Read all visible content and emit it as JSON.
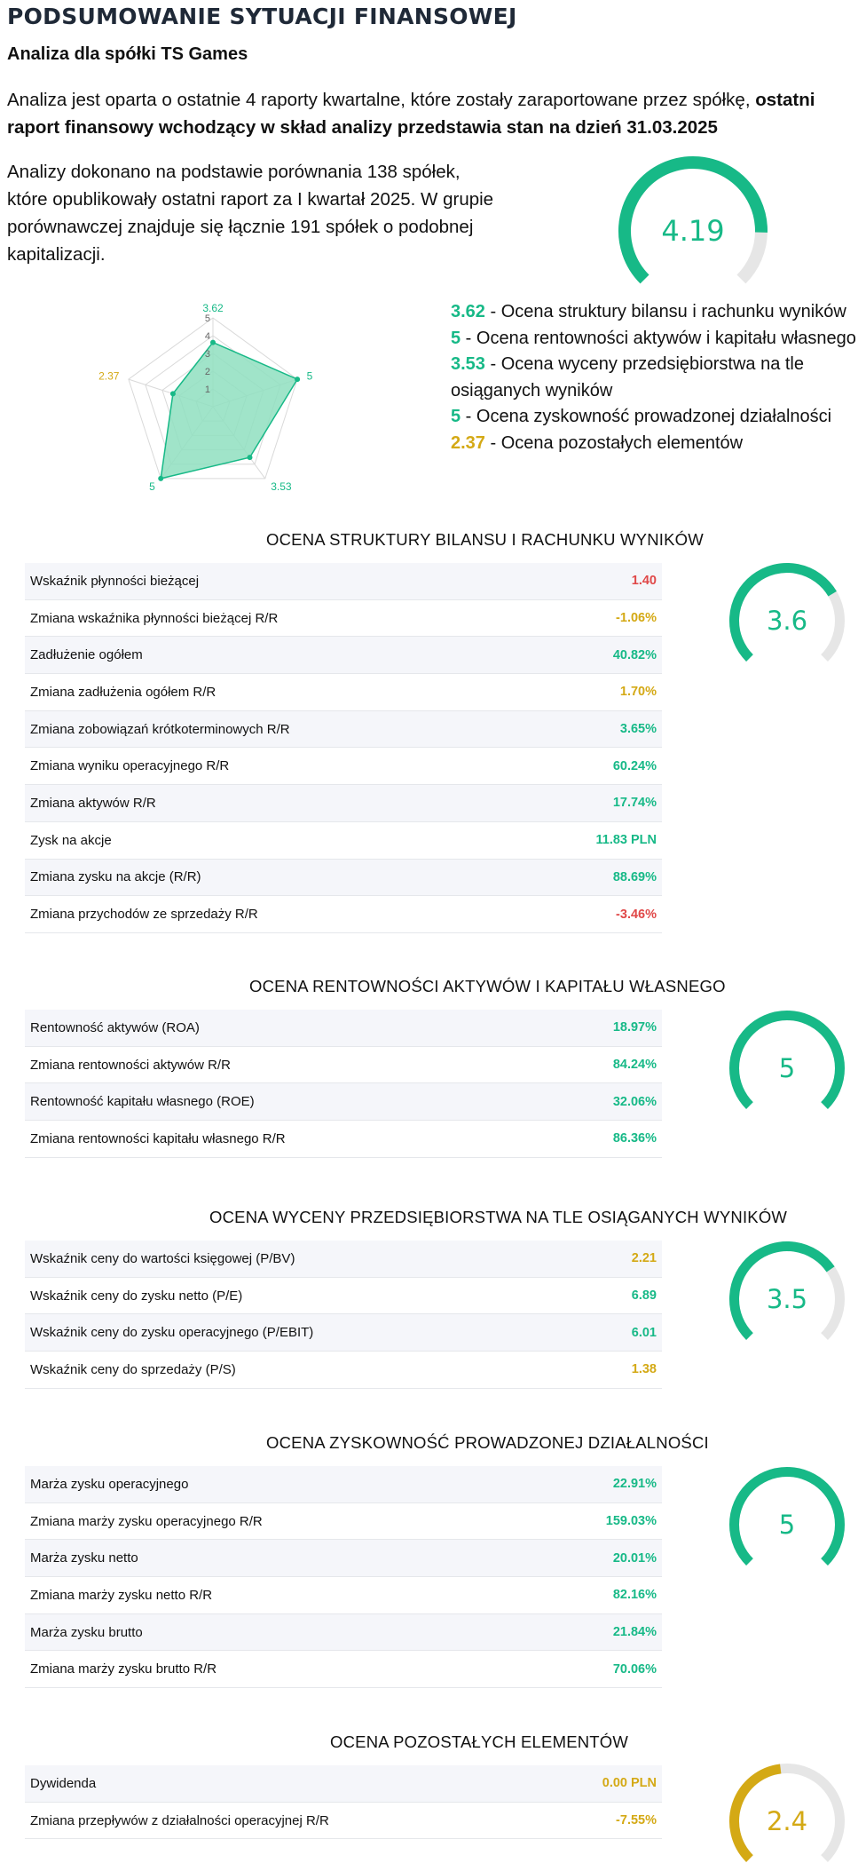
{
  "header": {
    "title": "PODSUMOWANIE SYTUACJI FINANSOWEJ",
    "subtitle": "Analiza dla spółki TS Games"
  },
  "intro": {
    "text": "Analiza jest oparta o ostatnie 4 raporty kwartalne, które zostały zaraportowane przez spółkę, ",
    "bold": "ostatni raport finansowy wchodzący w skład analizy przedstawia stan na dzień 31.03.2025"
  },
  "comparison": "Analizy dokonano na podstawie porównania 138 spółek, które opublikowały ostatni raport za I kwartał 2025. W grupie porównawczej znajduje się łącznie 191 spółek o podobnej kapitalizacji.",
  "colors": {
    "green": "#17b987",
    "yellow": "#d4a915",
    "red": "#e04848",
    "track": "#e6e6e6",
    "radar_fill": "#8fdfc0"
  },
  "overall": {
    "score": "4.19",
    "fraction": 0.838,
    "color": "#17b987"
  },
  "radar": {
    "scale": [
      "1",
      "2",
      "3",
      "4",
      "5"
    ],
    "max": 5,
    "axes": [
      {
        "value": 3.62,
        "label": "3.62",
        "color": "#17b987"
      },
      {
        "value": 5,
        "label": "5",
        "color": "#17b987"
      },
      {
        "value": 3.53,
        "label": "3.53",
        "color": "#17b987"
      },
      {
        "value": 5,
        "label": "5",
        "color": "#17b987"
      },
      {
        "value": 2.37,
        "label": "2.37",
        "color": "#d4a915"
      }
    ]
  },
  "legend": [
    {
      "score": "3.62",
      "text": "- Ocena struktury bilansu i rachunku wyników",
      "color": "#17b987"
    },
    {
      "score": "5",
      "text": "- Ocena rentowności aktywów i kapitału własnego",
      "color": "#17b987"
    },
    {
      "score": "3.53",
      "text": "- Ocena wyceny przedsiębiorstwa na tle osiąganych wyników",
      "color": "#17b987"
    },
    {
      "score": "5",
      "text": "- Ocena zyskowność prowadzonej działalności",
      "color": "#17b987"
    },
    {
      "score": "2.37",
      "text": "- Ocena pozostałych elementów",
      "color": "#d4a915"
    }
  ],
  "sections": [
    {
      "title": "OCENA STRUKTURY BILANSU I RACHUNKU WYNIKÓW",
      "score": "3.6",
      "fraction": 0.72,
      "color": "#17b987",
      "rows": [
        {
          "label": "Wskaźnik płynności bieżącej",
          "value": "1.40",
          "color": "#e04848"
        },
        {
          "label": "Zmiana wskaźnika płynności bieżącej R/R",
          "value": "-1.06%",
          "color": "#d4a915"
        },
        {
          "label": "Zadłużenie ogółem",
          "value": "40.82%",
          "color": "#17b987"
        },
        {
          "label": "Zmiana zadłużenia ogółem R/R",
          "value": "1.70%",
          "color": "#d4a915"
        },
        {
          "label": "Zmiana zobowiązań krótkoterminowych R/R",
          "value": "3.65%",
          "color": "#17b987"
        },
        {
          "label": "Zmiana wyniku operacyjnego R/R",
          "value": "60.24%",
          "color": "#17b987"
        },
        {
          "label": "Zmiana aktywów R/R",
          "value": "17.74%",
          "color": "#17b987"
        },
        {
          "label": "Zysk na akcje",
          "value": "11.83 PLN",
          "color": "#17b987"
        },
        {
          "label": "Zmiana zysku na akcje (R/R)",
          "value": "88.69%",
          "color": "#17b987"
        },
        {
          "label": "Zmiana przychodów ze sprzedaży R/R",
          "value": "-3.46%",
          "color": "#e04848"
        }
      ]
    },
    {
      "title": "OCENA RENTOWNOŚCI AKTYWÓW I KAPITAŁU WŁASNEGO",
      "score": "5",
      "fraction": 1.0,
      "color": "#17b987",
      "rows": [
        {
          "label": "Rentowność aktywów (ROA)",
          "value": "18.97%",
          "color": "#17b987"
        },
        {
          "label": "Zmiana rentowności aktywów R/R",
          "value": "84.24%",
          "color": "#17b987"
        },
        {
          "label": "Rentowność kapitału własnego (ROE)",
          "value": "32.06%",
          "color": "#17b987"
        },
        {
          "label": "Zmiana rentowności kapitału własnego R/R",
          "value": "86.36%",
          "color": "#17b987"
        }
      ]
    },
    {
      "title": "OCENA WYCENY PRZEDSIĘBIORSTWA NA TLE OSIĄGANYCH WYNIKÓW",
      "score": "3.5",
      "fraction": 0.706,
      "color": "#17b987",
      "rows": [
        {
          "label": "Wskaźnik ceny do wartości księgowej (P/BV)",
          "value": "2.21",
          "color": "#d4a915"
        },
        {
          "label": "Wskaźnik ceny do zysku netto (P/E)",
          "value": "6.89",
          "color": "#17b987"
        },
        {
          "label": "Wskaźnik ceny do zysku operacyjnego (P/EBIT)",
          "value": "6.01",
          "color": "#17b987"
        },
        {
          "label": "Wskaźnik ceny do sprzedaży (P/S)",
          "value": "1.38",
          "color": "#d4a915"
        }
      ]
    },
    {
      "title": "OCENA ZYSKOWNOŚĆ PROWADZONEJ DZIAŁALNOŚCI",
      "score": "5",
      "fraction": 1.0,
      "color": "#17b987",
      "rows": [
        {
          "label": "Marża zysku operacyjnego",
          "value": "22.91%",
          "color": "#17b987"
        },
        {
          "label": "Zmiana marży zysku operacyjnego R/R",
          "value": "159.03%",
          "color": "#17b987"
        },
        {
          "label": "Marża zysku netto",
          "value": "20.01%",
          "color": "#17b987"
        },
        {
          "label": "Zmiana marży zysku netto R/R",
          "value": "82.16%",
          "color": "#17b987"
        },
        {
          "label": "Marża zysku brutto",
          "value": "21.84%",
          "color": "#17b987"
        },
        {
          "label": "Zmiana marży zysku brutto R/R",
          "value": "70.06%",
          "color": "#17b987"
        }
      ]
    },
    {
      "title": "OCENA POZOSTAŁYCH ELEMENTÓW",
      "score": "2.4",
      "fraction": 0.474,
      "color": "#d4a915",
      "rows": [
        {
          "label": "Dywidenda",
          "value": "0.00 PLN",
          "color": "#d4a915"
        },
        {
          "label": "Zmiana przepływów z działalności operacyjnej R/R",
          "value": "-7.55%",
          "color": "#d4a915"
        }
      ]
    }
  ]
}
